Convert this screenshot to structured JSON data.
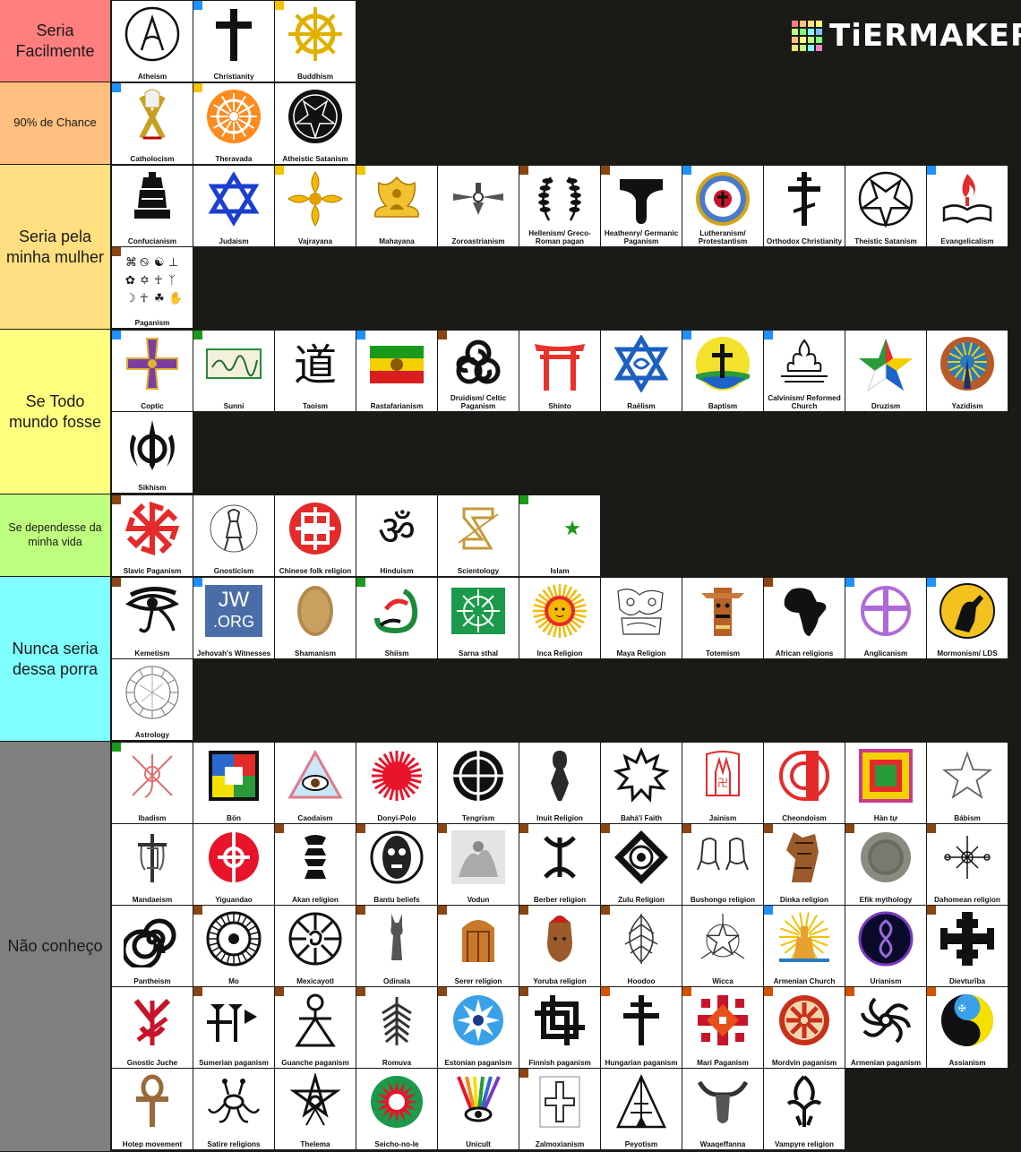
{
  "brand": {
    "name": "TiERMAKER"
  },
  "colors": {
    "blue": "#1e90ff",
    "yellow": "#f5c400",
    "brown": "#8b4513",
    "green": "#1a9a1a",
    "orange": "#d35400"
  },
  "tiers": [
    {
      "label": "Seria Facilmente",
      "color": "#ff7f7f",
      "items": [
        {
          "name": "Atheism",
          "icon": "atheism-icon"
        },
        {
          "name": "Christianity",
          "icon": "cross-icon",
          "flag": "blue"
        },
        {
          "name": "Buddhism",
          "icon": "dharma-wheel-icon",
          "flag": "yellow"
        }
      ]
    },
    {
      "label": "90% de Chance",
      "color": "#ffbf7f",
      "items": [
        {
          "name": "Catholocism",
          "icon": "papal-keys-icon",
          "flag": "blue"
        },
        {
          "name": "Theravada",
          "icon": "orange-wheel-icon",
          "flag": "yellow"
        },
        {
          "name": "Atheistic Satanism",
          "icon": "baphomet-icon"
        }
      ]
    },
    {
      "label": "Seria pela minha mulher",
      "color": "#ffdf7f",
      "items": [
        {
          "name": "Confucianism",
          "icon": "bell-icon"
        },
        {
          "name": "Judaism",
          "icon": "star-of-david-icon"
        },
        {
          "name": "Vajrayana",
          "icon": "vajra-icon",
          "flag": "yellow"
        },
        {
          "name": "Mahayana",
          "icon": "lotus-buddha-icon",
          "flag": "yellow"
        },
        {
          "name": "Zoroastrianism",
          "icon": "faravahar-icon"
        },
        {
          "name": "Hellenism/ Greco-Roman pagan",
          "icon": "laurel-icon",
          "flag": "brown"
        },
        {
          "name": "Heathenry/ Germanic Paganism",
          "icon": "mjolnir-icon",
          "flag": "brown"
        },
        {
          "name": "Lutheranism/ Protestantism",
          "icon": "luther-rose-icon",
          "flag": "blue"
        },
        {
          "name": "Orthodox Christianity",
          "icon": "orthodox-cross-icon"
        },
        {
          "name": "Theistic Satanism",
          "icon": "pentagram-icon"
        },
        {
          "name": "Evangelicalism",
          "icon": "flame-book-icon",
          "flag": "blue"
        },
        {
          "name": "Paganism",
          "icon": "pagan-symbols-icon",
          "flag": "brown"
        }
      ]
    },
    {
      "label": "Se Todo mundo fosse",
      "color": "#ffff7f",
      "items": [
        {
          "name": "Coptic",
          "icon": "coptic-cross-icon",
          "flag": "blue"
        },
        {
          "name": "Sunni",
          "icon": "calligraphy-icon",
          "flag": "green"
        },
        {
          "name": "Taoism",
          "icon": "dao-character-icon"
        },
        {
          "name": "Rastafarianism",
          "icon": "rasta-flag-icon",
          "flag": "blue"
        },
        {
          "name": "Druidism/ Celtic Paganism",
          "icon": "triskele-icon",
          "flag": "brown"
        },
        {
          "name": "Shinto",
          "icon": "torii-icon"
        },
        {
          "name": "Raëlism",
          "icon": "raelism-star-icon"
        },
        {
          "name": "Baptism",
          "icon": "baptism-cross-icon",
          "flag": "blue"
        },
        {
          "name": "Calvinism/ Reformed Church",
          "icon": "burning-bush-icon",
          "flag": "blue"
        },
        {
          "name": "Druzism",
          "icon": "druze-star-icon"
        },
        {
          "name": "Yazidism",
          "icon": "peacock-icon"
        },
        {
          "name": "Sikhism",
          "icon": "khanda-icon"
        }
      ]
    },
    {
      "label": "Se dependesse da minha vida",
      "color": "#bfff7f",
      "items": [
        {
          "name": "Slavic Paganism",
          "icon": "kolovrat-icon",
          "flag": "brown"
        },
        {
          "name": "Gnosticism",
          "icon": "abraxas-icon"
        },
        {
          "name": "Chinese folk religion",
          "icon": "shou-icon"
        },
        {
          "name": "Hinduism",
          "icon": "om-icon"
        },
        {
          "name": "Scientology",
          "icon": "scientology-icon"
        },
        {
          "name": "Islam",
          "icon": "crescent-star-icon",
          "flag": "green"
        }
      ]
    },
    {
      "label": "Nunca seria dessa porra",
      "color": "#7fffff",
      "items": [
        {
          "name": "Kemetism",
          "icon": "eye-of-horus-icon",
          "flag": "brown"
        },
        {
          "name": "Jehovah's Witnesses",
          "icon": "jw-org-icon",
          "flag": "blue",
          "logo": [
            "JW",
            ".ORG"
          ]
        },
        {
          "name": "Shamanism",
          "icon": "drum-icon"
        },
        {
          "name": "Shiism",
          "icon": "calligraphy-color-icon",
          "flag": "green"
        },
        {
          "name": "Sarna sthal",
          "icon": "sarna-flag-icon"
        },
        {
          "name": "Inca Religion",
          "icon": "inti-sun-icon"
        },
        {
          "name": "Maya Religion",
          "icon": "maya-glyph-icon"
        },
        {
          "name": "Totemism",
          "icon": "totem-icon"
        },
        {
          "name": "African religions",
          "icon": "africa-map-icon",
          "flag": "brown"
        },
        {
          "name": "Anglicanism",
          "icon": "anglican-cross-icon",
          "flag": "blue"
        },
        {
          "name": "Mormonism/ LDS",
          "icon": "moroni-icon",
          "flag": "blue"
        },
        {
          "name": "Astrology",
          "icon": "zodiac-chart-icon"
        }
      ]
    },
    {
      "label": "Não conheço",
      "color": "#7f7f7f",
      "items": [
        {
          "name": "Ibadism",
          "icon": "oman-emblem-icon",
          "flag": "green"
        },
        {
          "name": "Bön",
          "icon": "bon-flag-icon"
        },
        {
          "name": "Caodaism",
          "icon": "divine-eye-icon"
        },
        {
          "name": "Donyi-Polo",
          "icon": "red-sun-icon"
        },
        {
          "name": "Tengrism",
          "icon": "tengri-icon"
        },
        {
          "name": "Inuit Religion",
          "icon": "inuit-figure-icon"
        },
        {
          "name": "Bahá'í Faith",
          "icon": "nine-star-icon"
        },
        {
          "name": "Jainism",
          "icon": "jain-hand-icon"
        },
        {
          "name": "Cheondoism",
          "icon": "cheondoism-icon"
        },
        {
          "name": "Hàn tự",
          "icon": "han-tu-icon"
        },
        {
          "name": "Bábism",
          "icon": "babism-pentacle-icon"
        },
        {
          "name": "Mandaeism",
          "icon": "darfash-icon"
        },
        {
          "name": "Yiguandao",
          "icon": "yiguandao-icon"
        },
        {
          "name": "Akan religion",
          "icon": "adinkra-icon",
          "flag": "brown"
        },
        {
          "name": "Bantu beliefs",
          "icon": "mask-icon",
          "flag": "brown"
        },
        {
          "name": "Vodun",
          "icon": "vodun-engraving-icon",
          "flag": "brown"
        },
        {
          "name": "Berber religion",
          "icon": "yaz-icon",
          "flag": "brown"
        },
        {
          "name": "Zulu Religion",
          "icon": "zulu-diamond-icon",
          "flag": "brown"
        },
        {
          "name": "Bushongo religion",
          "icon": "frogs-icon",
          "flag": "brown"
        },
        {
          "name": "Dinka religion",
          "icon": "dinka-icon",
          "flag": "brown"
        },
        {
          "name": "Efik mythology",
          "icon": "stone-disc-icon",
          "flag": "brown"
        },
        {
          "name": "Dahomean religion",
          "icon": "veve-icon",
          "flag": "brown"
        },
        {
          "name": "Pantheism",
          "icon": "spiral-icon"
        },
        {
          "name": "Mo",
          "icon": "mo-mandala-icon",
          "flag": "brown"
        },
        {
          "name": "Mexicayotl",
          "icon": "ollin-icon"
        },
        {
          "name": "Odinala",
          "icon": "ikenga-icon",
          "flag": "brown"
        },
        {
          "name": "Serer religion",
          "icon": "serer-shrine-icon",
          "flag": "brown"
        },
        {
          "name": "Yoruba religion",
          "icon": "ife-head-icon",
          "flag": "brown"
        },
        {
          "name": "Hoodoo",
          "icon": "hoodoo-leaf-icon",
          "flag": "brown"
        },
        {
          "name": "Wicca",
          "icon": "wicca-pentacle-icon"
        },
        {
          "name": "Armenian Church",
          "icon": "armenian-church-icon",
          "flag": "blue"
        },
        {
          "name": "Urianism",
          "icon": "urianism-icon"
        },
        {
          "name": "Dievturība",
          "icon": "latvian-cross-icon",
          "flag": "brown"
        },
        {
          "name": "Gnostic Juche",
          "icon": "juche-icon"
        },
        {
          "name": "Sumerian paganism",
          "icon": "cuneiform-icon",
          "flag": "brown"
        },
        {
          "name": "Guanche paganism",
          "icon": "guanche-idol-icon",
          "flag": "brown"
        },
        {
          "name": "Romuva",
          "icon": "romuva-tree-icon",
          "flag": "brown"
        },
        {
          "name": "Estonian paganism",
          "icon": "estonian-star-icon",
          "flag": "brown"
        },
        {
          "name": "Finnish paganism",
          "icon": "finnish-knot-icon",
          "flag": "brown"
        },
        {
          "name": "Hungarian paganism",
          "icon": "double-cross-icon",
          "flag": "orange"
        },
        {
          "name": "Mari Paganism",
          "icon": "mari-pattern-icon",
          "flag": "orange"
        },
        {
          "name": "Mordvin paganism",
          "icon": "mordvin-sun-icon",
          "flag": "orange"
        },
        {
          "name": "Armenian paganism",
          "icon": "arevakhach-icon",
          "flag": "orange"
        },
        {
          "name": "Assianism",
          "icon": "assianism-icon",
          "flag": "orange"
        },
        {
          "name": "Hotep movement",
          "icon": "ankh-icon"
        },
        {
          "name": "Satire religions",
          "icon": "spaghetti-monster-icon"
        },
        {
          "name": "Thelema",
          "icon": "unicursal-hexagram-icon"
        },
        {
          "name": "Seicho-no-Ie",
          "icon": "seicho-no-ie-icon"
        },
        {
          "name": "Unicult",
          "icon": "unicult-icon"
        },
        {
          "name": "Zalmoxianism",
          "icon": "zalmoxis-cross-icon",
          "flag": "brown"
        },
        {
          "name": "Peyotism",
          "icon": "tipi-icon"
        },
        {
          "name": "Waaqeffanna",
          "icon": "bull-horns-icon"
        },
        {
          "name": "Vampyre religion",
          "icon": "ankh-fang-icon"
        }
      ]
    }
  ]
}
